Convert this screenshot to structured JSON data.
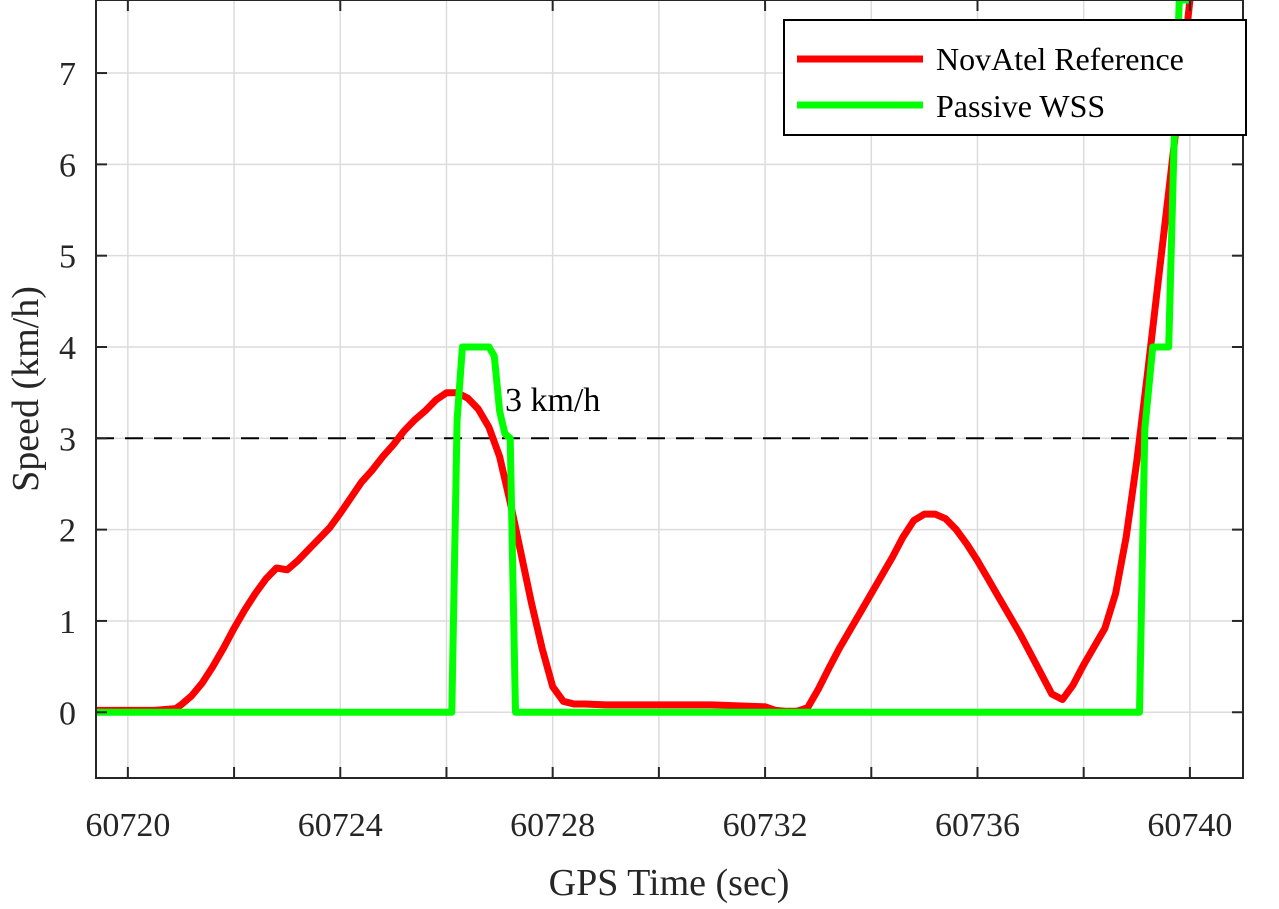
{
  "chart_data": {
    "type": "line",
    "xlabel": "GPS Time (sec)",
    "ylabel": "Speed (km/h)",
    "xlim": [
      60719.4,
      60741.0
    ],
    "ylim": [
      -0.72,
      7.8
    ],
    "xticks": [
      60720,
      60724,
      60728,
      60732,
      60736,
      60740
    ],
    "yticks": [
      0,
      1,
      2,
      3,
      4,
      5,
      6,
      7
    ],
    "grid": true,
    "legend_position": "top-right",
    "annotation": {
      "label": "3 km/h",
      "x": 60728.0,
      "y": 3.3
    },
    "threshold": {
      "y": 3,
      "style": "dashed",
      "color": "#000000"
    },
    "series": [
      {
        "name": "NovAtel Reference",
        "color": "#ff0000",
        "x": [
          60719.4,
          60720.0,
          60720.5,
          60720.9,
          60721.0,
          60721.2,
          60721.4,
          60721.6,
          60721.8,
          60722.0,
          60722.2,
          60722.4,
          60722.6,
          60722.8,
          60723.0,
          60723.2,
          60723.4,
          60723.6,
          60723.8,
          60724.0,
          60724.2,
          60724.4,
          60724.6,
          60724.8,
          60725.0,
          60725.2,
          60725.4,
          60725.6,
          60725.8,
          60726.0,
          60726.2,
          60726.4,
          60726.6,
          60726.8,
          60727.0,
          60727.2,
          60727.4,
          60727.6,
          60727.8,
          60728.0,
          60728.2,
          60728.4,
          60728.6,
          60729.0,
          60729.5,
          60730.0,
          60730.5,
          60731.0,
          60731.5,
          60732.0,
          60732.2,
          60732.4,
          60732.6,
          60732.8,
          60733.0,
          60733.2,
          60733.4,
          60733.6,
          60733.8,
          60734.0,
          60734.2,
          60734.4,
          60734.6,
          60734.8,
          60735.0,
          60735.2,
          60735.4,
          60735.6,
          60735.8,
          60736.0,
          60736.2,
          60736.4,
          60736.6,
          60736.8,
          60737.0,
          60737.2,
          60737.4,
          60737.6,
          60737.8,
          60738.0,
          60738.2,
          60738.4,
          60738.6,
          60738.8,
          60739.0,
          60739.2,
          60739.4,
          60739.6,
          60739.8,
          60740.0
        ],
        "y": [
          0.02,
          0.02,
          0.02,
          0.04,
          0.08,
          0.18,
          0.32,
          0.5,
          0.7,
          0.92,
          1.12,
          1.3,
          1.46,
          1.58,
          1.56,
          1.66,
          1.78,
          1.9,
          2.02,
          2.18,
          2.35,
          2.52,
          2.65,
          2.8,
          2.93,
          3.08,
          3.2,
          3.3,
          3.42,
          3.5,
          3.5,
          3.44,
          3.32,
          3.12,
          2.8,
          2.3,
          1.75,
          1.2,
          0.7,
          0.28,
          0.12,
          0.09,
          0.09,
          0.08,
          0.08,
          0.08,
          0.08,
          0.08,
          0.07,
          0.06,
          0.02,
          0.01,
          0.01,
          0.05,
          0.25,
          0.48,
          0.7,
          0.9,
          1.1,
          1.3,
          1.5,
          1.7,
          1.92,
          2.1,
          2.17,
          2.17,
          2.12,
          2.0,
          1.84,
          1.66,
          1.46,
          1.26,
          1.06,
          0.86,
          0.64,
          0.42,
          0.2,
          0.14,
          0.3,
          0.52,
          0.72,
          0.92,
          1.3,
          1.92,
          2.75,
          3.7,
          4.7,
          5.7,
          6.7,
          7.8
        ]
      },
      {
        "name": "Passive WSS",
        "color": "#00ff00",
        "x": [
          60719.4,
          60726.1,
          60726.2,
          60726.3,
          60726.4,
          60726.8,
          60726.9,
          60727.0,
          60727.1,
          60727.2,
          60727.3,
          60727.4,
          60739.05,
          60739.15,
          60739.3,
          60739.5,
          60739.6,
          60739.7,
          60739.8,
          60740.0
        ],
        "y": [
          0,
          0,
          3.2,
          4.0,
          4.0,
          4.0,
          3.9,
          3.3,
          3.05,
          3.0,
          0.0,
          0.0,
          0.0,
          3.1,
          4.0,
          4.0,
          4.0,
          6.2,
          7.8,
          7.8
        ]
      }
    ]
  }
}
